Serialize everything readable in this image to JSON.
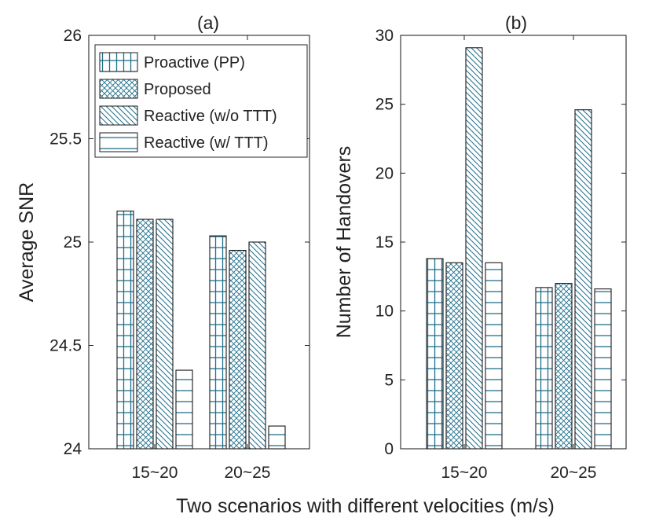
{
  "figure_xlabel": "Two scenarios with different velocities (m/s)",
  "colors": {
    "bar_pattern": "#1f6f8b",
    "bar_edge": "#1a1a1a",
    "axis": "#262626",
    "background": "#ffffff"
  },
  "legend_entries": [
    "Proactive (PP)",
    "Proposed",
    "Reactive (w/o TTT)",
    "Reactive (w/ TTT)"
  ],
  "chart_data": [
    {
      "type": "bar",
      "title": "(a)",
      "xlabel": "",
      "ylabel": "Average SNR",
      "categories": [
        "15~20",
        "20~25"
      ],
      "ylim": [
        24,
        26
      ],
      "yticks": [
        "24",
        "24.5",
        "25",
        "25.5",
        "26"
      ],
      "series": [
        {
          "name": "Proactive (PP)",
          "values": [
            25.15,
            25.03
          ]
        },
        {
          "name": "Proposed",
          "values": [
            25.11,
            24.96
          ]
        },
        {
          "name": "Reactive (w/o TTT)",
          "values": [
            25.11,
            25.0
          ]
        },
        {
          "name": "Reactive (w/ TTT)",
          "values": [
            24.38,
            24.11
          ]
        }
      ],
      "legend": "top-left"
    },
    {
      "type": "bar",
      "title": "(b)",
      "xlabel": "",
      "ylabel": "Number of Handovers",
      "categories": [
        "15~20",
        "20~25"
      ],
      "ylim": [
        0,
        30
      ],
      "yticks": [
        "0",
        "5",
        "10",
        "15",
        "20",
        "25",
        "30"
      ],
      "series": [
        {
          "name": "Proactive (PP)",
          "values": [
            13.8,
            11.7
          ]
        },
        {
          "name": "Proposed",
          "values": [
            13.5,
            12.0
          ]
        },
        {
          "name": "Reactive (w/o TTT)",
          "values": [
            29.1,
            24.6
          ]
        },
        {
          "name": "Reactive (w/ TTT)",
          "values": [
            13.5,
            11.6
          ]
        }
      ]
    }
  ]
}
